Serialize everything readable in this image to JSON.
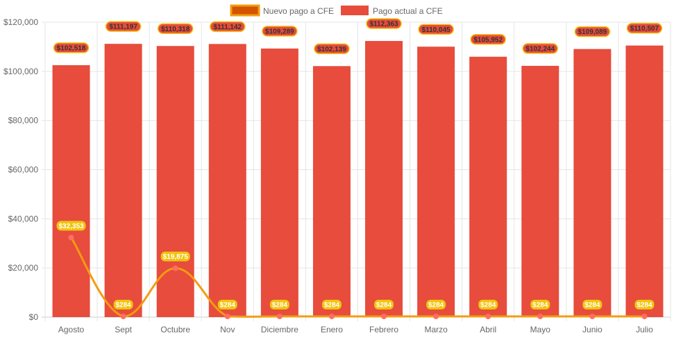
{
  "chart_data": {
    "type": "bar",
    "title": "",
    "xlabel": "",
    "ylabel": "",
    "ylim": [
      0,
      120000
    ],
    "yticks": [
      "$0",
      "$20,000",
      "$40,000",
      "$60,000",
      "$80,000",
      "$100,000",
      "$120,000"
    ],
    "ytick_values": [
      0,
      20000,
      40000,
      60000,
      80000,
      100000,
      120000
    ],
    "grid": true,
    "legend_position": "top-center",
    "categories": [
      "Agosto",
      "Sept",
      "Octubre",
      "Nov",
      "Diciembre",
      "Enero",
      "Febrero",
      "Marzo",
      "Abril",
      "Mayo",
      "Junio",
      "Julio"
    ],
    "series": [
      {
        "name": "Nuevo pago a CFE",
        "type": "line",
        "color": "#f39c12",
        "point_color": "#ff6f61",
        "label_bg": "#f1c40f",
        "values": [
          32353,
          284,
          19875,
          284,
          284,
          284,
          284,
          284,
          284,
          284,
          284,
          284
        ],
        "labels": [
          "$32,353",
          "$284",
          "$19,875",
          "$284",
          "$284",
          "$284",
          "$284",
          "$284",
          "$284",
          "$284",
          "$284",
          "$284"
        ]
      },
      {
        "name": "Pago actual a CFE",
        "type": "bar",
        "color": "#e74c3c",
        "label_border": "#f1c40f",
        "values": [
          102518,
          111197,
          110318,
          111142,
          109289,
          102139,
          112363,
          110045,
          105952,
          102244,
          109089,
          110507
        ],
        "labels": [
          "$102,518",
          "$111,197",
          "$110,318",
          "$111,142",
          "$109,289",
          "$102,139",
          "$112,363",
          "$110,045",
          "$105,952",
          "$102,244",
          "$109,089",
          "$110,507"
        ]
      }
    ]
  }
}
